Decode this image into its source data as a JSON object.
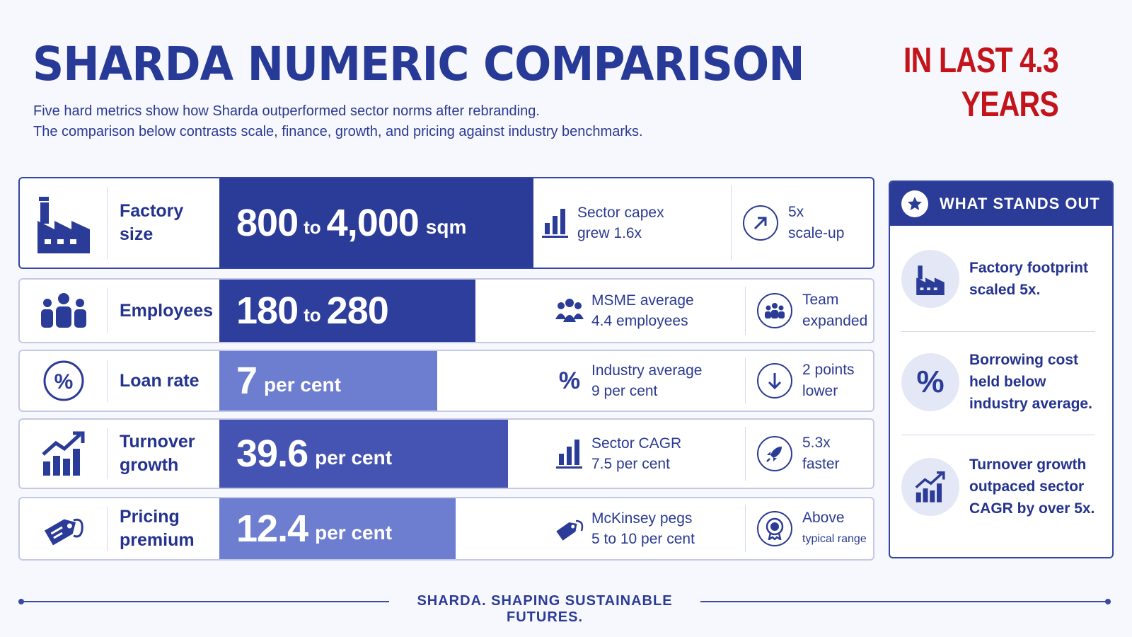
{
  "header": {
    "title": "SHARDA NUMERIC COMPARISON",
    "subtitle_line1": "Five hard metrics show how Sharda outperformed sector norms after rebranding.",
    "subtitle_line2": "The comparison below contrasts scale, finance, growth, and pricing against industry benchmarks.",
    "corner_line1": "IN LAST 4.3",
    "corner_line2": "YEARS"
  },
  "colors": {
    "primary": "#2b3b98",
    "medium": "#4554b2",
    "light": "#6d7dd0",
    "accent_red": "#c3141b"
  },
  "rows": [
    {
      "icon": "factory-icon",
      "label": "Factory size",
      "value_a": "800",
      "value_joiner": "to",
      "value_b": "4,000",
      "value_unit": "sqm",
      "bench_icon": "bar-chart-icon",
      "bench_line1": "Sector capex",
      "bench_line2": "grew 1.6x",
      "result_icon": "arrow-up-right-icon",
      "result_line1": "5x",
      "result_line2": "scale-up"
    },
    {
      "icon": "people-icon",
      "label": "Employees",
      "value_a": "180",
      "value_joiner": "to",
      "value_b": "280",
      "value_unit": "",
      "bench_icon": "group-icon",
      "bench_line1": "MSME average",
      "bench_line2": "4.4 employees",
      "result_icon": "team-icon",
      "result_line1": "Team",
      "result_line2": "expanded"
    },
    {
      "icon": "percent-circle-icon",
      "label": "Loan rate",
      "value_a": "7",
      "value_unit": "per cent",
      "bench_icon": "percent-icon",
      "bench_line1": "Industry average",
      "bench_line2": "9 per cent",
      "result_icon": "arrow-down-icon",
      "result_line1": "2 points",
      "result_line2": "lower"
    },
    {
      "icon": "growth-chart-icon",
      "label_line1": "Turnover",
      "label_line2": "growth",
      "value_a": "39.6",
      "value_unit": "per cent",
      "bench_icon": "bar-chart-icon",
      "bench_line1": "Sector CAGR",
      "bench_line2": "7.5 per cent",
      "result_icon": "rocket-icon",
      "result_line1": "5.3x",
      "result_line2": "faster"
    },
    {
      "icon": "price-tag-icon",
      "label_line1": "Pricing",
      "label_line2": "premium",
      "value_a": "12.4",
      "value_unit": "per cent",
      "bench_icon": "tag-icon",
      "bench_line1": "McKinsey pegs",
      "bench_line2": "5 to 10 per cent",
      "result_icon": "award-icon",
      "result_line1": "Above",
      "result_line2": "typical range"
    }
  ],
  "panel": {
    "title": "WHAT STANDS OUT",
    "title_icon": "star-icon",
    "items": [
      {
        "icon": "factory-icon",
        "line1": "Factory footprint",
        "line2": "scaled 5x."
      },
      {
        "icon": "percent-icon",
        "line1": "Borrowing cost",
        "line2": "held below",
        "line3": "industry average."
      },
      {
        "icon": "growth-chart-icon",
        "line1": "Turnover growth",
        "line2": "outpaced sector",
        "line3": "CAGR by over 5x."
      }
    ]
  },
  "footer": {
    "tagline": "SHARDA. SHAPING SUSTAINABLE FUTURES."
  }
}
